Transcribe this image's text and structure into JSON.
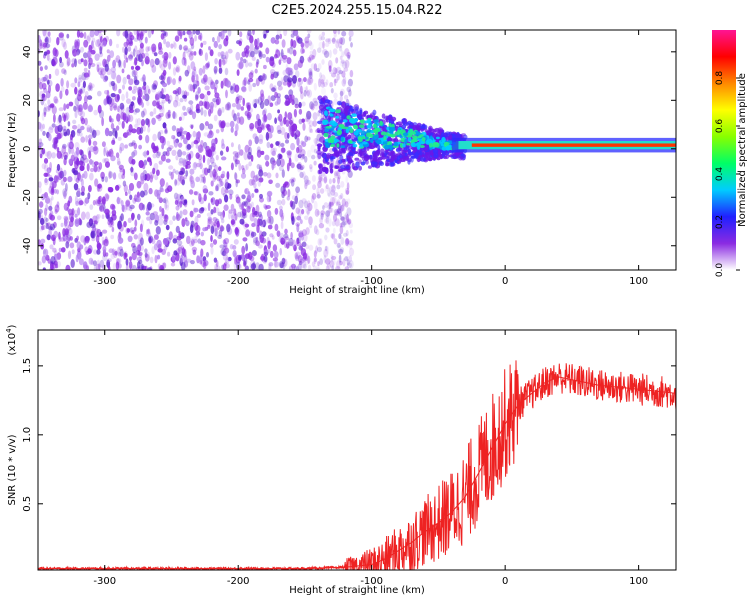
{
  "title": "C2E5.2024.255.15.04.R22",
  "colors": {
    "spectrogram_noise": "#8a2be2",
    "snr_line": "#ee2222"
  },
  "chart_data": [
    {
      "type": "heatmap",
      "title": "C2E5.2024.255.15.04.R22",
      "xlabel": "Height of straight line (km)",
      "ylabel": "Frequency (Hz)",
      "xlim": [
        -350,
        128
      ],
      "ylim": [
        -50,
        49
      ],
      "xticks": [
        -300,
        -200,
        -100,
        0,
        100
      ],
      "yticks": [
        -40,
        -20,
        0,
        20,
        40
      ],
      "colorbar": {
        "label": "Normalized spectral amplitude",
        "range": [
          0,
          1
        ],
        "ticks": [
          0.0,
          0.2,
          0.4,
          0.6,
          0.8
        ],
        "tick_labels": [
          "0.0",
          "0.2",
          "0.4",
          "0.6",
          "0.8"
        ],
        "colormap": [
          "#ffffff",
          "#8a2be2",
          "#2020ff",
          "#00ccff",
          "#00ff66",
          "#88ff00",
          "#ffff00",
          "#ff8800",
          "#ff0000",
          "#ff1493"
        ]
      },
      "features": {
        "noise_region_x": [
          -350,
          -115
        ],
        "transition_region_x": [
          -140,
          -40
        ],
        "carrier_region_x": [
          -40,
          128
        ],
        "carrier_frequency_hz": 1.5
      },
      "grid": false
    },
    {
      "type": "line",
      "xlabel": "Height of straight line (km)",
      "ylabel": "SNR (10 * v/v)",
      "yscale_label": "(x10",
      "yscale_exponent": "4",
      "xlim": [
        -350,
        128
      ],
      "ylim": [
        0.02,
        1.76
      ],
      "xticks": [
        -300,
        -200,
        -100,
        0,
        100
      ],
      "yticks": [
        0.5,
        1.0,
        1.5
      ],
      "ytick_labels": [
        "0.5",
        "1.0",
        "1.5"
      ],
      "series": [
        {
          "x": [
            -350,
            -300,
            -250,
            -200,
            -150,
            -120,
            -100,
            -90,
            -80,
            -70,
            -60,
            -50,
            -40,
            -30,
            -20,
            -10,
            0,
            10,
            20,
            30,
            40,
            50,
            60,
            70,
            80,
            90,
            100,
            110,
            120,
            128
          ],
          "values": [
            0.03,
            0.03,
            0.03,
            0.03,
            0.03,
            0.04,
            0.06,
            0.1,
            0.16,
            0.22,
            0.3,
            0.36,
            0.44,
            0.55,
            0.72,
            0.9,
            1.08,
            1.22,
            1.3,
            1.38,
            1.42,
            1.4,
            1.38,
            1.36,
            1.35,
            1.34,
            1.33,
            1.32,
            1.31,
            1.3
          ]
        }
      ],
      "grid": false
    }
  ]
}
